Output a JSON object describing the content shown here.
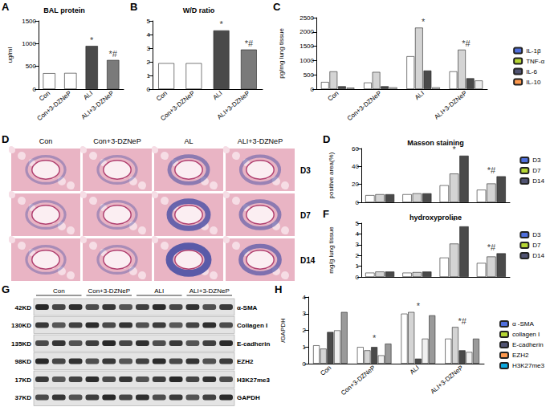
{
  "chart_data": [
    {
      "type": "bar",
      "panel": "A",
      "title": "BAL protein",
      "y_label": "ug/ml",
      "categories": [
        "Con",
        "Con+3-DZNeP",
        "ALI",
        "ALI+3-DZNeP"
      ],
      "values": [
        350,
        355,
        950,
        640
      ],
      "colors": [
        "#ffffff",
        "#ffffff",
        "#4a4a4a",
        "#7a7a7a"
      ],
      "ylim": [
        0,
        1500
      ],
      "yticks": [
        0,
        500,
        1000,
        1500
      ],
      "grid": false,
      "annotations": [
        {
          "category": "ALI",
          "text": "*"
        },
        {
          "category": "ALI+3-DZNeP",
          "text": "*#"
        }
      ]
    },
    {
      "type": "bar",
      "panel": "B",
      "title": "W/D ratio",
      "categories": [
        "Con",
        "Con+3-DZNeP",
        "ALI",
        "ALI+3-DZNeP"
      ],
      "values": [
        1.9,
        1.9,
        4.3,
        2.9
      ],
      "colors": [
        "#ffffff",
        "#ffffff",
        "#4a4a4a",
        "#7a7a7a"
      ],
      "ylim": [
        0,
        5
      ],
      "yticks": [
        0,
        1,
        2,
        3,
        4,
        5
      ],
      "grid": false,
      "annotations": [
        {
          "category": "ALI",
          "text": "*"
        },
        {
          "category": "ALI+3-DZNeP",
          "text": "*#"
        }
      ]
    },
    {
      "type": "bar",
      "panel": "C",
      "y_label": "pg/mg lung tissue",
      "categories": [
        "Con",
        "Con+3-DZNeP",
        "ALI",
        "ALI+3-DZNeP"
      ],
      "series": [
        {
          "name": "IL-1β",
          "color": "#ffffff",
          "values": [
            250,
            230,
            1150,
            620
          ]
        },
        {
          "name": "TNF-α",
          "color": "#d4d4d4",
          "values": [
            620,
            600,
            2150,
            1380
          ]
        },
        {
          "name": "IL-6",
          "color": "#4a4a4a",
          "values": [
            100,
            100,
            650,
            380
          ]
        },
        {
          "name": "IL-10",
          "color": "#ececec",
          "values": [
            50,
            60,
            60,
            300
          ]
        }
      ],
      "ylim": [
        0,
        2500
      ],
      "yticks": [
        0,
        500,
        1000,
        1500,
        2000,
        2500
      ],
      "grid": false,
      "legend": "right",
      "annotations": [
        {
          "category": "ALI",
          "text": "*"
        },
        {
          "category": "ALI+3-DZNeP",
          "text": "*#"
        }
      ]
    },
    {
      "type": "bar",
      "panel": "D",
      "title": "Masson staining",
      "y_label": "positive area(%)",
      "categories": [
        "Con",
        "Con+3-DZNeP",
        "ALI",
        "ALI+3-DZNeP"
      ],
      "series": [
        {
          "name": "D3",
          "color": "#ffffff",
          "values": [
            8,
            9,
            19,
            14
          ]
        },
        {
          "name": "D7",
          "color": "#d4d4d4",
          "values": [
            9,
            10,
            32,
            21
          ]
        },
        {
          "name": "D14",
          "color": "#4a4a4a",
          "values": [
            9,
            10,
            52,
            29
          ]
        }
      ],
      "ylim": [
        0,
        60
      ],
      "yticks": [
        0,
        20,
        40,
        60
      ],
      "grid": false,
      "legend": "right",
      "tick_labels": "y",
      "annotations": [
        {
          "category": "ALI",
          "text": "*"
        },
        {
          "category": "ALI+3-DZNeP",
          "text": "*#"
        }
      ]
    },
    {
      "type": "bar",
      "panel": "F",
      "title": "hydroxyproline",
      "y_label": "mg/g lung tissue",
      "categories": [
        "Con",
        "Con+3-DZNeP",
        "ALI",
        "ALI+3-DZNeP"
      ],
      "series": [
        {
          "name": "D3",
          "color": "#ffffff",
          "values": [
            0.4,
            0.4,
            1.8,
            1.3
          ]
        },
        {
          "name": "D7",
          "color": "#d4d4d4",
          "values": [
            0.5,
            0.45,
            3.1,
            1.9
          ]
        },
        {
          "name": "D14",
          "color": "#4a4a4a",
          "values": [
            0.5,
            0.5,
            4.7,
            2.2
          ]
        }
      ],
      "ylim": [
        0,
        5
      ],
      "yticks": [
        0,
        1,
        2,
        3,
        4,
        5
      ],
      "grid": false,
      "legend": "right",
      "tick_labels": "y",
      "annotations": [
        {
          "category": "ALI",
          "text": "*"
        },
        {
          "category": "ALI+3-DZNeP",
          "text": "*#"
        }
      ]
    },
    {
      "type": "bar",
      "panel": "H",
      "y_label": "/GAPDH",
      "categories": [
        "Con",
        "Con+3-DZNeP",
        "ALI",
        "ALI+3-DZNeP"
      ],
      "series": [
        {
          "name": "α -SMA",
          "color": "#ffffff",
          "values": [
            1.1,
            1.0,
            3.0,
            1.5
          ]
        },
        {
          "name": "collagen I",
          "color": "#d4d4d4",
          "values": [
            0.9,
            0.8,
            3.1,
            2.2
          ]
        },
        {
          "name": "E-cadherin",
          "color": "#4a4a4a",
          "values": [
            1.9,
            1.0,
            0.3,
            0.8
          ]
        },
        {
          "name": "EZH2",
          "color": "#f0f0f0",
          "values": [
            2.0,
            0.5,
            1.5,
            0.7
          ]
        },
        {
          "name": "H3K27me3",
          "color": "#9a9a9a",
          "values": [
            3.1,
            1.2,
            2.9,
            1.5
          ]
        }
      ],
      "ylim": [
        0,
        4
      ],
      "yticks": [
        0,
        1,
        2,
        3,
        4
      ],
      "grid": false,
      "legend": "right",
      "annotations": [
        {
          "category": "Con+3-DZNeP",
          "text": "*"
        },
        {
          "category": "ALI",
          "text": "*"
        },
        {
          "category": "ALI+3-DZNeP",
          "text": "*#"
        }
      ]
    }
  ],
  "histology": {
    "panel": "D",
    "columns": [
      "Con",
      "Con+3-DZNeP",
      "AL",
      "ALI+3-DZNeP"
    ],
    "rows": [
      "D3",
      "D7",
      "D14"
    ]
  },
  "blot": {
    "panel": "G",
    "groups": [
      "Con",
      "Con+3-DZNeP",
      "ALI",
      "ALI+3-DZNeP"
    ],
    "rows": [
      {
        "size": "42KD",
        "protein": "α-SMA"
      },
      {
        "size": "130KD",
        "protein": "Collagen I"
      },
      {
        "size": "135KD",
        "protein": "E-cadherin"
      },
      {
        "size": "98KD",
        "protein": "EZH2"
      },
      {
        "size": "17KD",
        "protein": "H3K27me3"
      },
      {
        "size": "37KD",
        "protein": "GAPDH"
      }
    ]
  }
}
